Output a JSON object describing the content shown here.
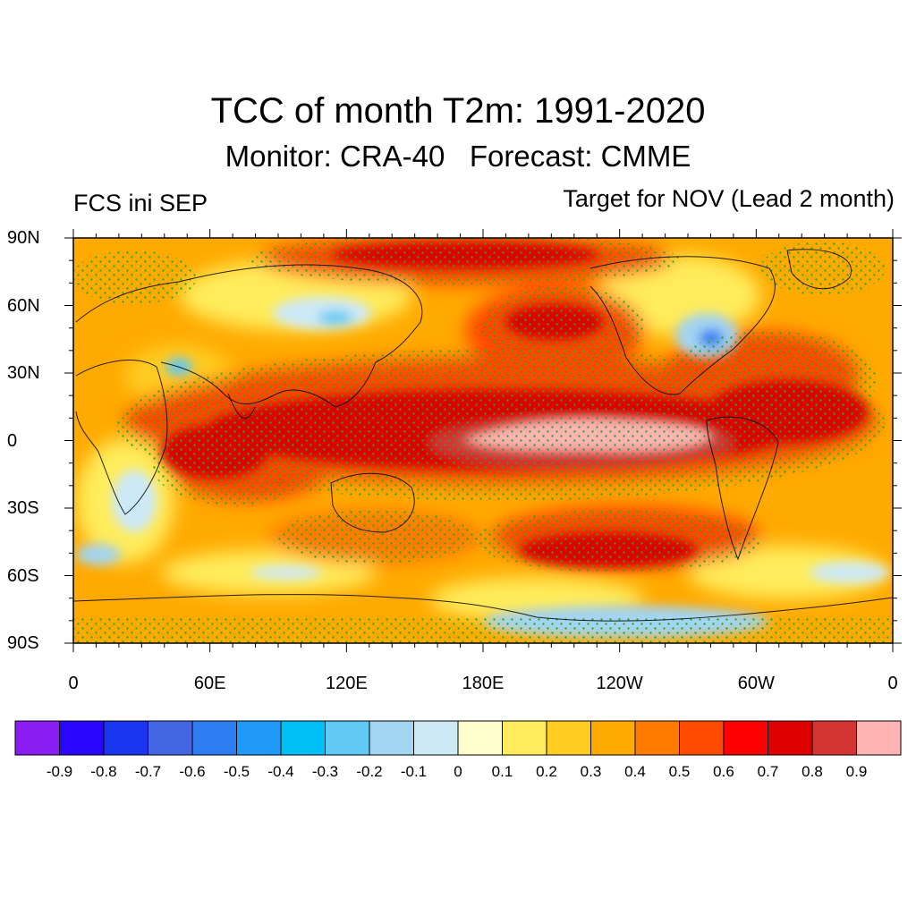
{
  "title": "TCC of month T2m: 1991-2020",
  "subtitle": "Monitor: CRA-40   Forecast: CMME",
  "left_label": "FCS ini SEP",
  "right_label": "Target for NOV (Lead 2 month)",
  "lat_ticks": [
    "90N",
    "60N",
    "30N",
    "0",
    "30S",
    "60S",
    "90S"
  ],
  "lon_ticks": [
    "0",
    "60E",
    "120E",
    "180E",
    "120W",
    "60W",
    "0"
  ],
  "colorbar": {
    "colors": [
      "#8b1cf2",
      "#2b06ff",
      "#1a35ee",
      "#4466e4",
      "#2e7cf2",
      "#1f9af8",
      "#00bff5",
      "#62c8f4",
      "#a3d4f2",
      "#cde9f8",
      "#ffffcc",
      "#ffec5c",
      "#ffcc22",
      "#ffaa00",
      "#ff7b00",
      "#ff4a00",
      "#ff0000",
      "#dd0000",
      "#d43434",
      "#ffb3b3"
    ],
    "labels": [
      "-0.9",
      "-0.8",
      "-0.7",
      "-0.6",
      "-0.5",
      "-0.4",
      "-0.3",
      "-0.2",
      "-0.1",
      "0",
      "0.1",
      "0.2",
      "0.3",
      "0.4",
      "0.5",
      "0.6",
      "0.7",
      "0.8",
      "0.9"
    ]
  },
  "stipple_color": "#22aa22"
}
